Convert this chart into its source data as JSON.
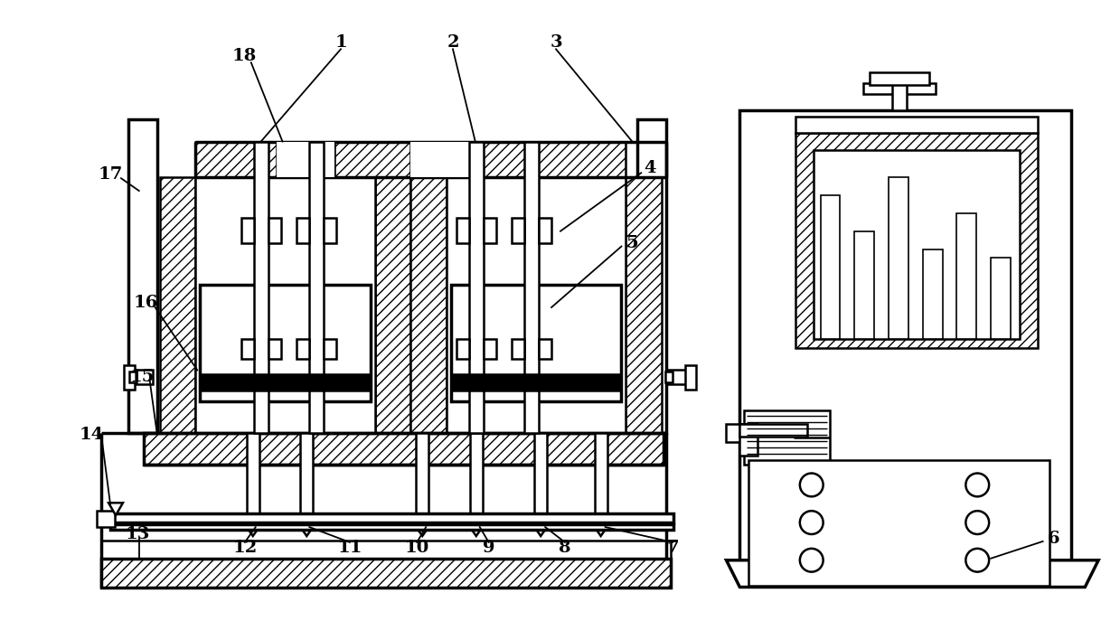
{
  "bg_color": "#ffffff",
  "lw": 1.8,
  "lw2": 2.5,
  "lw3": 1.2,
  "fs": 14
}
